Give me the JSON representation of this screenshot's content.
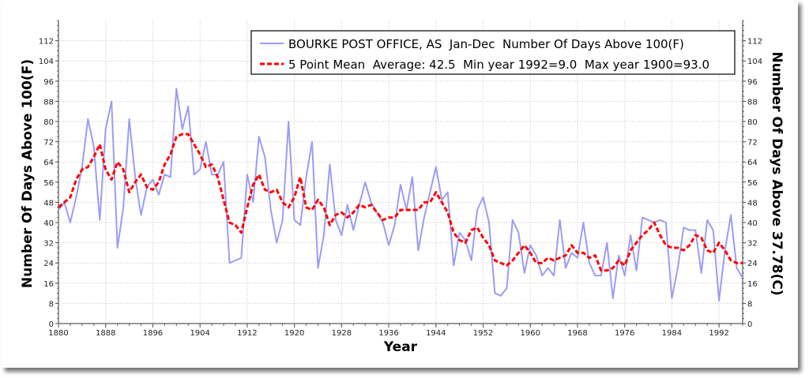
{
  "chart_data": {
    "type": "line",
    "title": "",
    "xlabel": "Year",
    "ylabel": "Number Of Days Above 100(F)",
    "ylabel_right": "Number Of Days Above 37.78(C)",
    "xlim": [
      1880,
      1996
    ],
    "ylim": [
      0,
      120
    ],
    "x_ticks": [
      1880,
      1888,
      1896,
      1904,
      1912,
      1920,
      1928,
      1936,
      1944,
      1952,
      1960,
      1968,
      1976,
      1984,
      1992
    ],
    "y_ticks": [
      0,
      8,
      16,
      24,
      32,
      40,
      48,
      56,
      64,
      72,
      80,
      88,
      96,
      104,
      112
    ],
    "grid": true,
    "legend_position": "top-right",
    "x_start": 1880,
    "series": [
      {
        "name": "BOURKE POST OFFICE, AS  Jan-Dec  Number Of Days Above 100(F)",
        "color": "#9c9cf4",
        "style": "solid",
        "values": [
          45,
          48,
          40,
          50,
          62,
          81,
          70,
          41,
          77,
          88,
          30,
          46,
          81,
          58,
          43,
          54,
          57,
          51,
          59,
          58,
          93,
          77,
          86,
          59,
          61,
          72,
          59,
          59,
          64,
          24,
          25,
          26,
          59,
          48,
          74,
          66,
          45,
          32,
          41,
          80,
          41,
          39,
          58,
          72,
          22,
          35,
          63,
          41,
          35,
          47,
          37,
          47,
          56,
          48,
          44,
          40,
          31,
          39,
          55,
          45,
          58,
          29,
          42,
          52,
          62,
          49,
          52,
          23,
          36,
          33,
          25,
          45,
          50,
          40,
          12,
          11,
          14,
          41,
          36,
          20,
          31,
          27,
          19,
          22,
          19,
          41,
          22,
          28,
          26,
          40,
          24,
          19,
          19,
          32,
          10,
          27,
          19,
          35,
          21,
          42,
          41,
          40,
          41,
          40,
          10,
          22,
          38,
          37,
          37,
          20,
          41,
          37,
          9,
          29,
          43,
          22,
          18
        ]
      },
      {
        "name": "5 Point Mean  Average: 42.5  Min year 1992=9.0  Max year 1900=93.0",
        "color": "#ff0000",
        "style": "dashed",
        "values": [
          46,
          48,
          50,
          57,
          61,
          62,
          66,
          71,
          61,
          57,
          64,
          61,
          52,
          56,
          59,
          54,
          53,
          56,
          63,
          67,
          74,
          75,
          75,
          71,
          67,
          62,
          63,
          58,
          49,
          40,
          39,
          36,
          46,
          55,
          59,
          53,
          52,
          53,
          48,
          46,
          50,
          58,
          46,
          45,
          49,
          46,
          39,
          43,
          44,
          42,
          44,
          47,
          46,
          47,
          44,
          41,
          42,
          42,
          45,
          45,
          45,
          45,
          48,
          48,
          52,
          48,
          44,
          36,
          33,
          32,
          37,
          38,
          34,
          31,
          25,
          24,
          23,
          25,
          28,
          31,
          28,
          24,
          24,
          26,
          25,
          26,
          27,
          31,
          28,
          28,
          26,
          27,
          21,
          21,
          22,
          25,
          23,
          29,
          32,
          35,
          37,
          40,
          35,
          31,
          30,
          30,
          29,
          31,
          35,
          34,
          29,
          28,
          32,
          29,
          25,
          24,
          24
        ]
      }
    ]
  }
}
